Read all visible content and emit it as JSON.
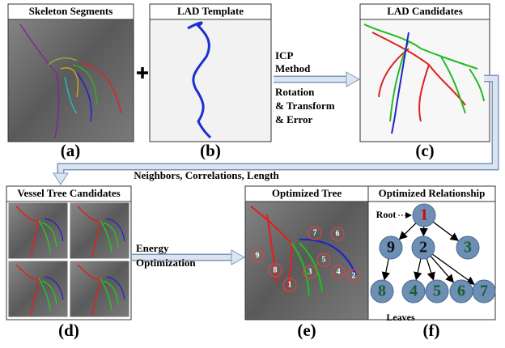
{
  "panels": [
    {
      "title": "Skeleton Segments",
      "label": "(a)"
    },
    {
      "title": "LAD Template",
      "label": "(b)"
    },
    {
      "title": "LAD Candidates",
      "label": "(c)"
    },
    {
      "title": "Vessel Tree Candidates",
      "label": "(d)"
    },
    {
      "title": "Optimized Tree",
      "label": "(e)"
    },
    {
      "title": "Optimized Relationship",
      "label": "(f)"
    }
  ],
  "icp_text": [
    "ICP",
    "Method",
    "Rotation",
    "& Transform",
    "& Error"
  ],
  "connector_text": "Neighbors, Correlations, Length",
  "energy_text": [
    "Energy",
    "Optimization"
  ],
  "tree_markers": [
    "1",
    "2",
    "3",
    "4",
    "5",
    "6",
    "7",
    "8",
    "9"
  ],
  "relationship": {
    "root_label": "Root",
    "leaves_label": "Leaves",
    "nodes": [
      "1",
      "9",
      "2",
      "3",
      "8",
      "4",
      "5",
      "6",
      "7"
    ]
  }
}
